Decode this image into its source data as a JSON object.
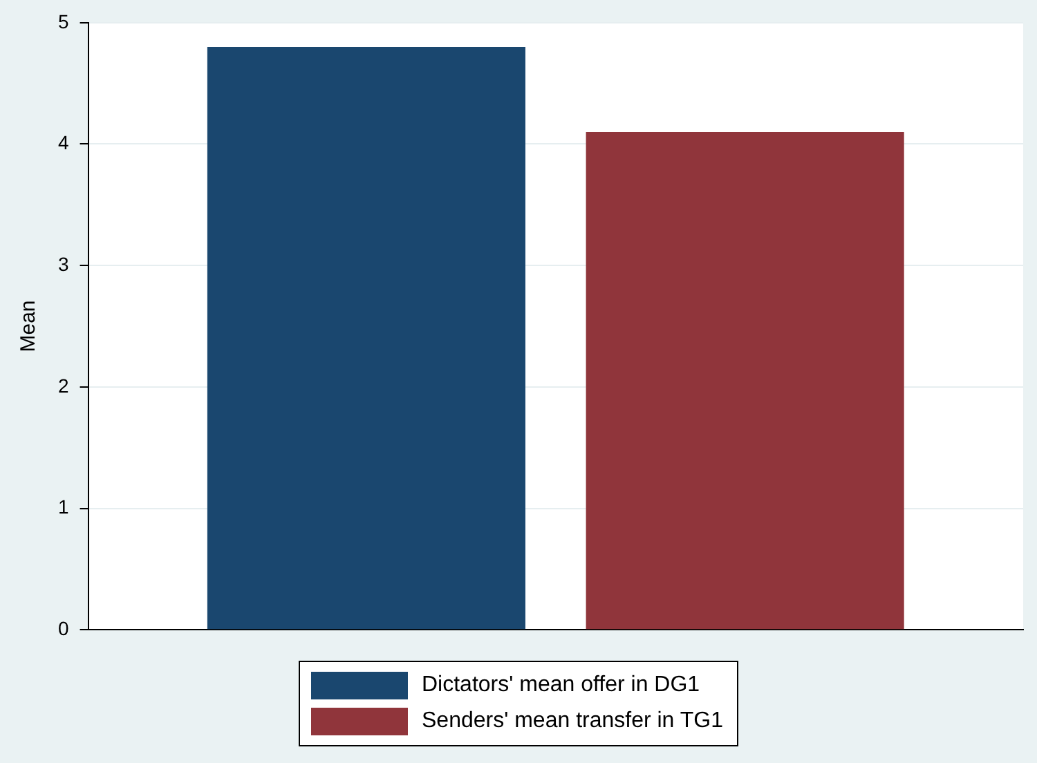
{
  "chart_data": {
    "type": "bar",
    "ylabel": "Mean",
    "categories": [
      null
    ],
    "series": [
      {
        "name": "Dictators' mean offer in DG1",
        "color": "#1a476f",
        "values": [
          4.8
        ]
      },
      {
        "name": "Senders' mean transfer in TG1",
        "color": "#90353b",
        "values": [
          4.1
        ]
      }
    ],
    "ylim": [
      0,
      5
    ],
    "yticks": [
      0,
      1,
      2,
      3,
      4,
      5
    ],
    "grid": "y",
    "legend": "bottom"
  }
}
